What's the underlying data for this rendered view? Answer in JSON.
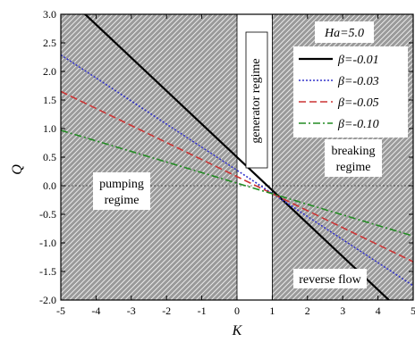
{
  "chart_data": {
    "type": "line",
    "xlabel": "K",
    "ylabel": "Q",
    "xlim": [
      -5,
      5
    ],
    "ylim": [
      -2.0,
      3.0
    ],
    "xticks": [
      "-5",
      "-4",
      "-3",
      "-2",
      "-1",
      "0",
      "1",
      "2",
      "3",
      "4",
      "5"
    ],
    "xtick_values": [
      -5,
      -4,
      -3,
      -2,
      -1,
      0,
      1,
      2,
      3,
      4,
      5
    ],
    "yticks": [
      "-2.0",
      "-1.5",
      "-1.0",
      "-0.5",
      "0.0",
      "0.5",
      "1.0",
      "1.5",
      "2.0",
      "2.5",
      "3.0"
    ],
    "ytick_values": [
      -2.0,
      -1.5,
      -1.0,
      -0.5,
      0.0,
      0.5,
      1.0,
      1.5,
      2.0,
      2.5,
      3.0
    ],
    "annotation": "Ha=5.0",
    "regions": {
      "generator": "generator regime",
      "breaking": "breaking\nregime",
      "pumping": "pumping\nregime",
      "reverse": "reverse flow"
    },
    "series": [
      {
        "name": "β=-0.01",
        "color": "#000000",
        "dash": "solid",
        "x": [
          -5,
          5
        ],
        "y": [
          3.4,
          -2.4
        ]
      },
      {
        "name": "β=-0.03",
        "color": "#3333cc",
        "dash": "dot",
        "x": [
          -5,
          5
        ],
        "y": [
          2.29,
          -1.75
        ]
      },
      {
        "name": "β=-0.05",
        "color": "#cc3333",
        "dash": "dash",
        "x": [
          -5,
          5
        ],
        "y": [
          1.65,
          -1.33
        ]
      },
      {
        "name": "β=-0.10",
        "color": "#228b22",
        "dash": "dashdot",
        "x": [
          -5,
          5
        ],
        "y": [
          0.97,
          -0.88
        ]
      }
    ]
  }
}
